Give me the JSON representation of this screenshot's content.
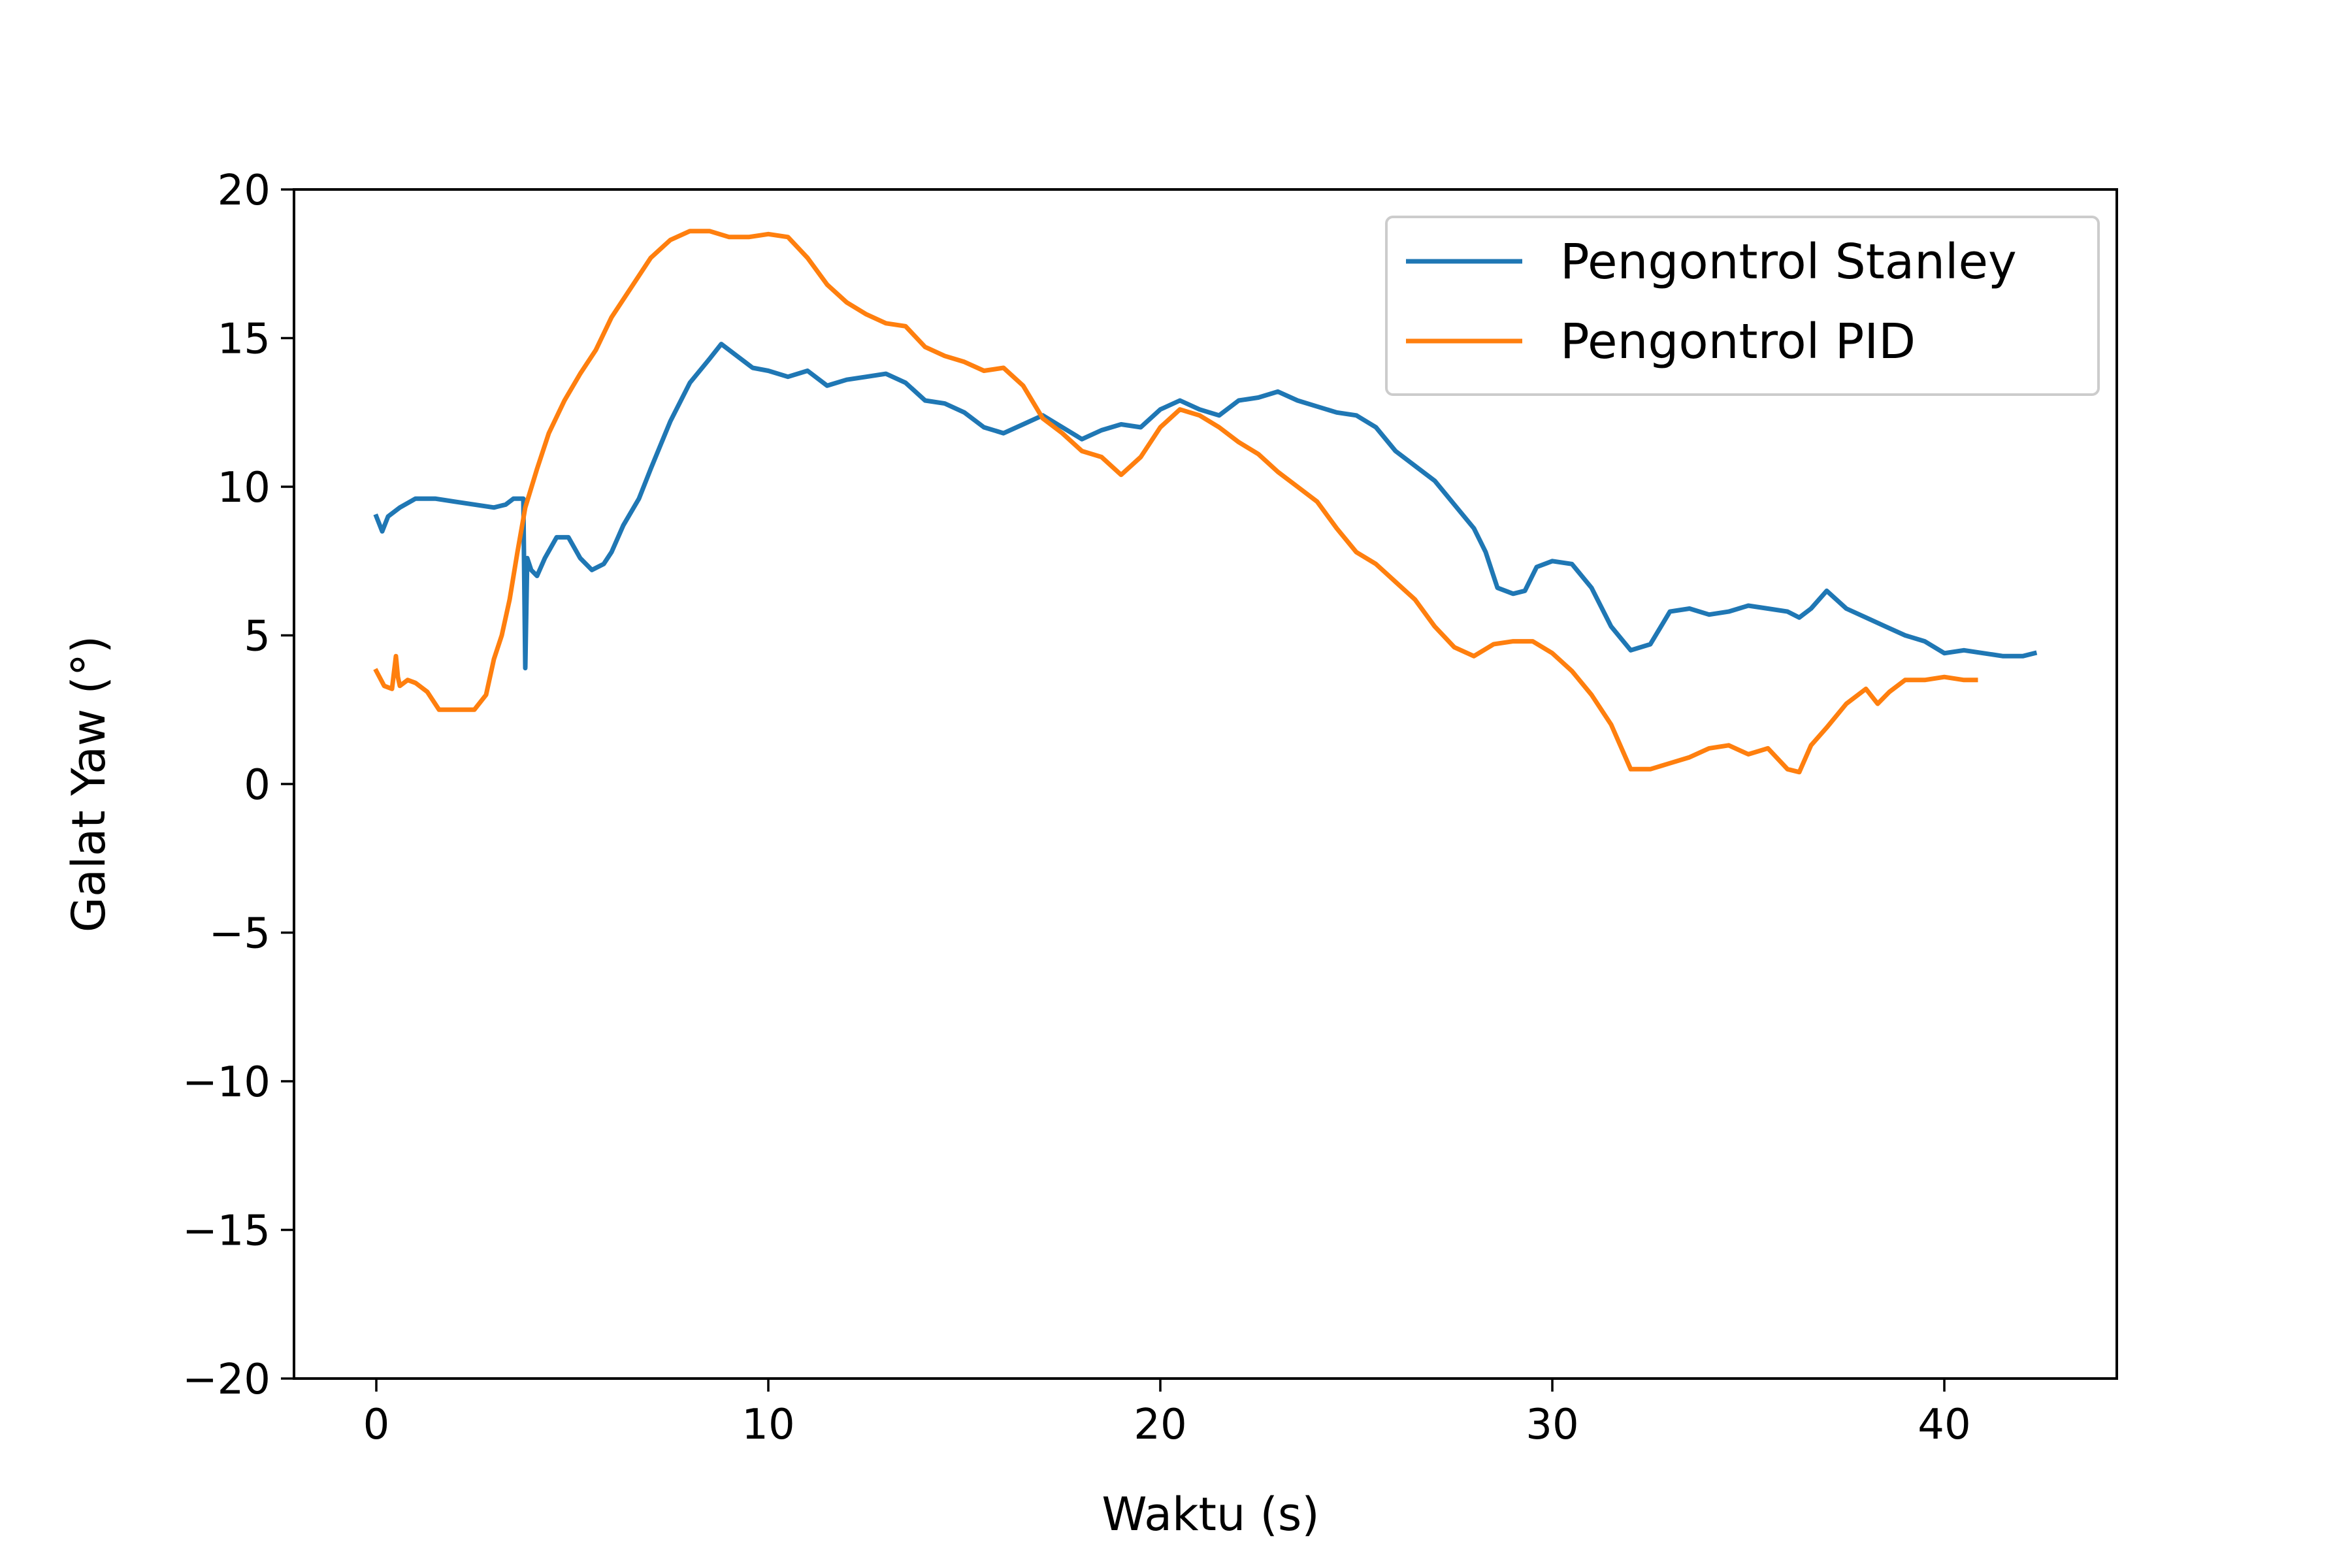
{
  "chart_data": {
    "type": "line",
    "title": "",
    "xlabel": "Waktu (s)",
    "ylabel": "Galat Yaw (°)",
    "xlim": [
      -2.1,
      44.4
    ],
    "ylim": [
      -20,
      20
    ],
    "xticks": [
      0,
      10,
      20,
      30,
      40
    ],
    "yticks": [
      -20,
      -15,
      -10,
      -5,
      0,
      5,
      10,
      15,
      20
    ],
    "xtick_labels": [
      "0",
      "10",
      "20",
      "30",
      "40"
    ],
    "ytick_labels": [
      "−20",
      "−15",
      "−10",
      "−5",
      "0",
      "5",
      "10",
      "15",
      "20"
    ],
    "grid": false,
    "legend_position": "top-right",
    "series": [
      {
        "name": "Pengontrol Stanley",
        "color": "#1f77b4",
        "x": [
          0,
          0.15,
          0.3,
          0.6,
          1.0,
          1.5,
          2.0,
          2.5,
          3.0,
          3.3,
          3.5,
          3.65,
          3.75,
          3.8,
          3.85,
          3.95,
          4.1,
          4.3,
          4.6,
          4.9,
          5.2,
          5.5,
          5.8,
          6.0,
          6.3,
          6.7,
          7.0,
          7.5,
          8.0,
          8.5,
          8.8,
          9.2,
          9.6,
          10.0,
          10.5,
          11.0,
          11.5,
          12.0,
          12.5,
          13.0,
          13.5,
          14.0,
          14.5,
          15.0,
          15.5,
          16.0,
          16.5,
          17.0,
          17.5,
          18.0,
          18.5,
          19.0,
          19.5,
          20.0,
          20.5,
          21.0,
          21.5,
          22.0,
          22.5,
          23.0,
          23.5,
          24.0,
          24.5,
          25.0,
          25.5,
          26.0,
          26.5,
          27.0,
          27.5,
          28.0,
          28.3,
          28.6,
          29.0,
          29.3,
          29.6,
          30.0,
          30.5,
          31.0,
          31.5,
          32.0,
          32.5,
          33.0,
          33.5,
          34.0,
          34.5,
          35.0,
          35.5,
          36.0,
          36.3,
          36.6,
          37.0,
          37.5,
          38.0,
          38.5,
          39.0,
          39.5,
          40.0,
          40.5,
          41.0,
          41.5,
          42.0,
          42.3
        ],
        "y": [
          9.0,
          8.5,
          9.0,
          9.3,
          9.6,
          9.6,
          9.5,
          9.4,
          9.3,
          9.4,
          9.6,
          9.6,
          9.6,
          3.9,
          7.6,
          7.2,
          7.0,
          7.6,
          8.3,
          8.3,
          7.6,
          7.2,
          7.4,
          7.8,
          8.7,
          9.6,
          10.6,
          12.2,
          13.5,
          14.3,
          14.8,
          14.4,
          14.0,
          13.9,
          13.7,
          13.9,
          13.4,
          13.6,
          13.7,
          13.8,
          13.5,
          12.9,
          12.8,
          12.5,
          12.0,
          11.8,
          12.1,
          12.4,
          12.0,
          11.6,
          11.9,
          12.1,
          12.0,
          12.6,
          12.9,
          12.6,
          12.4,
          12.9,
          13.0,
          13.2,
          12.9,
          12.7,
          12.5,
          12.4,
          12.0,
          11.2,
          10.7,
          10.2,
          9.4,
          8.6,
          7.8,
          6.6,
          6.4,
          6.5,
          7.3,
          7.5,
          7.4,
          6.6,
          5.3,
          4.5,
          4.7,
          5.8,
          5.9,
          5.7,
          5.8,
          6.0,
          5.9,
          5.8,
          5.6,
          5.9,
          6.5,
          5.9,
          5.6,
          5.3,
          5.0,
          4.8,
          4.4,
          4.5,
          4.4,
          4.3,
          4.3,
          4.4
        ]
      },
      {
        "name": "Pengontrol PID",
        "color": "#ff7f0e",
        "x": [
          0,
          0.2,
          0.4,
          0.5,
          0.55,
          0.6,
          0.8,
          1.0,
          1.3,
          1.6,
          1.9,
          2.2,
          2.5,
          2.8,
          3.0,
          3.2,
          3.4,
          3.6,
          3.8,
          4.1,
          4.4,
          4.8,
          5.2,
          5.6,
          6.0,
          6.5,
          7.0,
          7.5,
          8.0,
          8.5,
          9.0,
          9.5,
          10.0,
          10.5,
          11.0,
          11.5,
          12.0,
          12.5,
          13.0,
          13.5,
          14.0,
          14.5,
          15.0,
          15.5,
          16.0,
          16.5,
          17.0,
          17.5,
          18.0,
          18.5,
          19.0,
          19.5,
          20.0,
          20.5,
          21.0,
          21.5,
          22.0,
          22.5,
          23.0,
          23.5,
          24.0,
          24.5,
          25.0,
          25.5,
          26.0,
          26.5,
          27.0,
          27.5,
          28.0,
          28.5,
          29.0,
          29.5,
          30.0,
          30.5,
          31.0,
          31.5,
          32.0,
          32.5,
          33.0,
          33.5,
          34.0,
          34.5,
          35.0,
          35.5,
          36.0,
          36.3,
          36.6,
          37.0,
          37.5,
          38.0,
          38.3,
          38.6,
          39.0,
          39.5,
          40.0,
          40.5,
          40.8
        ],
        "y": [
          3.8,
          3.3,
          3.2,
          4.3,
          3.6,
          3.3,
          3.5,
          3.4,
          3.1,
          2.5,
          2.5,
          2.5,
          2.5,
          3.0,
          4.2,
          5.0,
          6.2,
          7.8,
          9.3,
          10.6,
          11.8,
          12.9,
          13.8,
          14.6,
          15.7,
          16.7,
          17.7,
          18.3,
          18.6,
          18.6,
          18.4,
          18.4,
          18.5,
          18.4,
          17.7,
          16.8,
          16.2,
          15.8,
          15.5,
          15.4,
          14.7,
          14.4,
          14.2,
          13.9,
          14.0,
          13.4,
          12.3,
          11.8,
          11.2,
          11.0,
          10.4,
          11.0,
          12.0,
          12.6,
          12.4,
          12.0,
          11.5,
          11.1,
          10.5,
          10.0,
          9.5,
          8.6,
          7.8,
          7.4,
          6.8,
          6.2,
          5.3,
          4.6,
          4.3,
          4.7,
          4.8,
          4.8,
          4.4,
          3.8,
          3.0,
          2.0,
          0.5,
          0.5,
          0.7,
          0.9,
          1.2,
          1.3,
          1.0,
          1.2,
          0.5,
          0.4,
          1.3,
          1.9,
          2.7,
          3.2,
          2.7,
          3.1,
          3.5,
          3.5,
          3.6,
          3.5,
          3.5
        ]
      }
    ]
  }
}
